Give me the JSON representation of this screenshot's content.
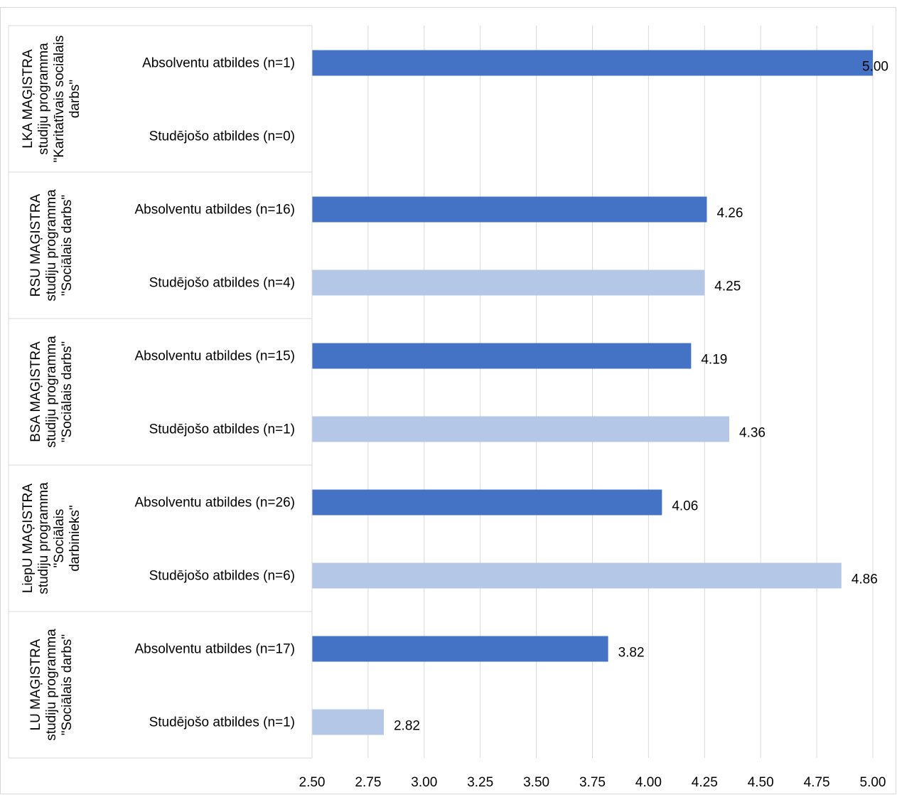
{
  "chart_data": {
    "type": "bar",
    "orientation": "horizontal",
    "xlim": [
      2.5,
      5.0
    ],
    "xticks": [
      "2.50",
      "2.75",
      "3.00",
      "3.25",
      "3.50",
      "3.75",
      "4.00",
      "4.25",
      "4.50",
      "4.75",
      "5.00"
    ],
    "grid": true,
    "legend": "none",
    "colors": {
      "absolventi": "#4472c4",
      "studejosie": "#b4c7e7"
    },
    "groups": [
      {
        "label": [
          "LKA MAĢISTRA",
          "studiju programma",
          "\"Karitatīvais sociālais",
          "darbs\""
        ],
        "bars": [
          {
            "label": "Absolventu atbildes (n=1)",
            "value": 5.0,
            "value_label": "5.00",
            "kind": "absolventi"
          },
          {
            "label": "Studējošo atbildes (n=0)",
            "value": null,
            "value_label": "",
            "kind": "studejosie"
          }
        ]
      },
      {
        "label": [
          "RSU MAĢISTRA",
          "studiju programma",
          "\"Sociālais darbs\""
        ],
        "bars": [
          {
            "label": "Absolventu atbildes (n=16)",
            "value": 4.26,
            "value_label": "4.26",
            "kind": "absolventi"
          },
          {
            "label": "Studējošo atbildes (n=4)",
            "value": 4.25,
            "value_label": "4.25",
            "kind": "studejosie"
          }
        ]
      },
      {
        "label": [
          "BSA MAĢISTRA",
          "studiju programma",
          "\"Sociālais darbs\""
        ],
        "bars": [
          {
            "label": "Absolventu atbildes (n=15)",
            "value": 4.19,
            "value_label": "4.19",
            "kind": "absolventi"
          },
          {
            "label": "Studējošo atbildes (n=1)",
            "value": 4.36,
            "value_label": "4.36",
            "kind": "studejosie"
          }
        ]
      },
      {
        "label": [
          "LiepU MAĢISTRA",
          "studiju programma",
          "\"Sociālais",
          "darbinieks\""
        ],
        "bars": [
          {
            "label": "Absolventu atbildes (n=26)",
            "value": 4.06,
            "value_label": "4.06",
            "kind": "absolventi"
          },
          {
            "label": "Studējošo atbildes (n=6)",
            "value": 4.86,
            "value_label": "4.86",
            "kind": "studejosie"
          }
        ]
      },
      {
        "label": [
          "LU MAĢISTRA",
          "studiju programma",
          "\"Sociālais darbs\""
        ],
        "bars": [
          {
            "label": "Absolventu atbildes (n=17)",
            "value": 3.82,
            "value_label": "3.82",
            "kind": "absolventi"
          },
          {
            "label": "Studējošo atbildes (n=1)",
            "value": 2.82,
            "value_label": "2.82",
            "kind": "studejosie"
          }
        ]
      }
    ]
  }
}
